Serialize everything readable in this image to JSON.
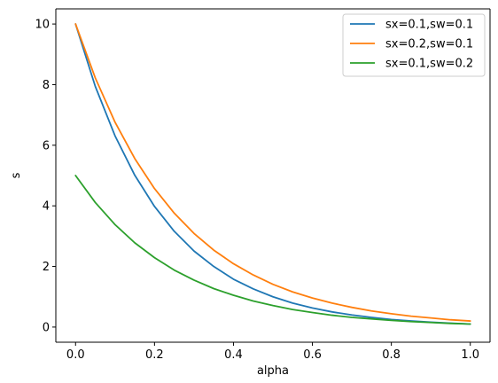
{
  "chart_data": {
    "type": "line",
    "title": "",
    "xlabel": "alpha",
    "ylabel": "s",
    "xlim": [
      -0.05,
      1.05
    ],
    "ylim": [
      -0.5,
      10.5
    ],
    "xticks": [
      0.0,
      0.2,
      0.4,
      0.6,
      0.8,
      1.0
    ],
    "xtick_labels": [
      "0.0",
      "0.2",
      "0.4",
      "0.6",
      "0.8",
      "1.0"
    ],
    "yticks": [
      0,
      2,
      4,
      6,
      8,
      10
    ],
    "ytick_labels": [
      "0",
      "2",
      "4",
      "6",
      "8",
      "10"
    ],
    "grid": false,
    "legend_position": "top-right",
    "x": [
      0.0,
      0.05,
      0.1,
      0.15,
      0.2,
      0.25,
      0.3,
      0.35,
      0.4,
      0.45,
      0.5,
      0.55,
      0.6,
      0.65,
      0.7,
      0.75,
      0.8,
      0.85,
      0.9,
      0.95,
      1.0
    ],
    "series": [
      {
        "name": "sx=0.1,sw=0.1",
        "color": "#1f77b4",
        "values": [
          10.0,
          7.94,
          6.31,
          5.01,
          3.98,
          3.16,
          2.51,
          2.0,
          1.58,
          1.26,
          1.0,
          0.79,
          0.63,
          0.5,
          0.4,
          0.32,
          0.25,
          0.2,
          0.16,
          0.13,
          0.1
        ]
      },
      {
        "name": "sx=0.2,sw=0.1",
        "color": "#ff7f0e",
        "values": [
          10.0,
          8.22,
          6.76,
          5.56,
          4.57,
          3.76,
          3.09,
          2.54,
          2.09,
          1.72,
          1.41,
          1.16,
          0.96,
          0.79,
          0.65,
          0.53,
          0.44,
          0.36,
          0.3,
          0.24,
          0.2
        ]
      },
      {
        "name": "sx=0.1,sw=0.2",
        "color": "#2ca02c",
        "values": [
          5.0,
          4.11,
          3.38,
          2.78,
          2.29,
          1.88,
          1.55,
          1.27,
          1.05,
          0.86,
          0.71,
          0.58,
          0.48,
          0.39,
          0.32,
          0.27,
          0.22,
          0.18,
          0.15,
          0.12,
          0.1
        ]
      }
    ]
  }
}
